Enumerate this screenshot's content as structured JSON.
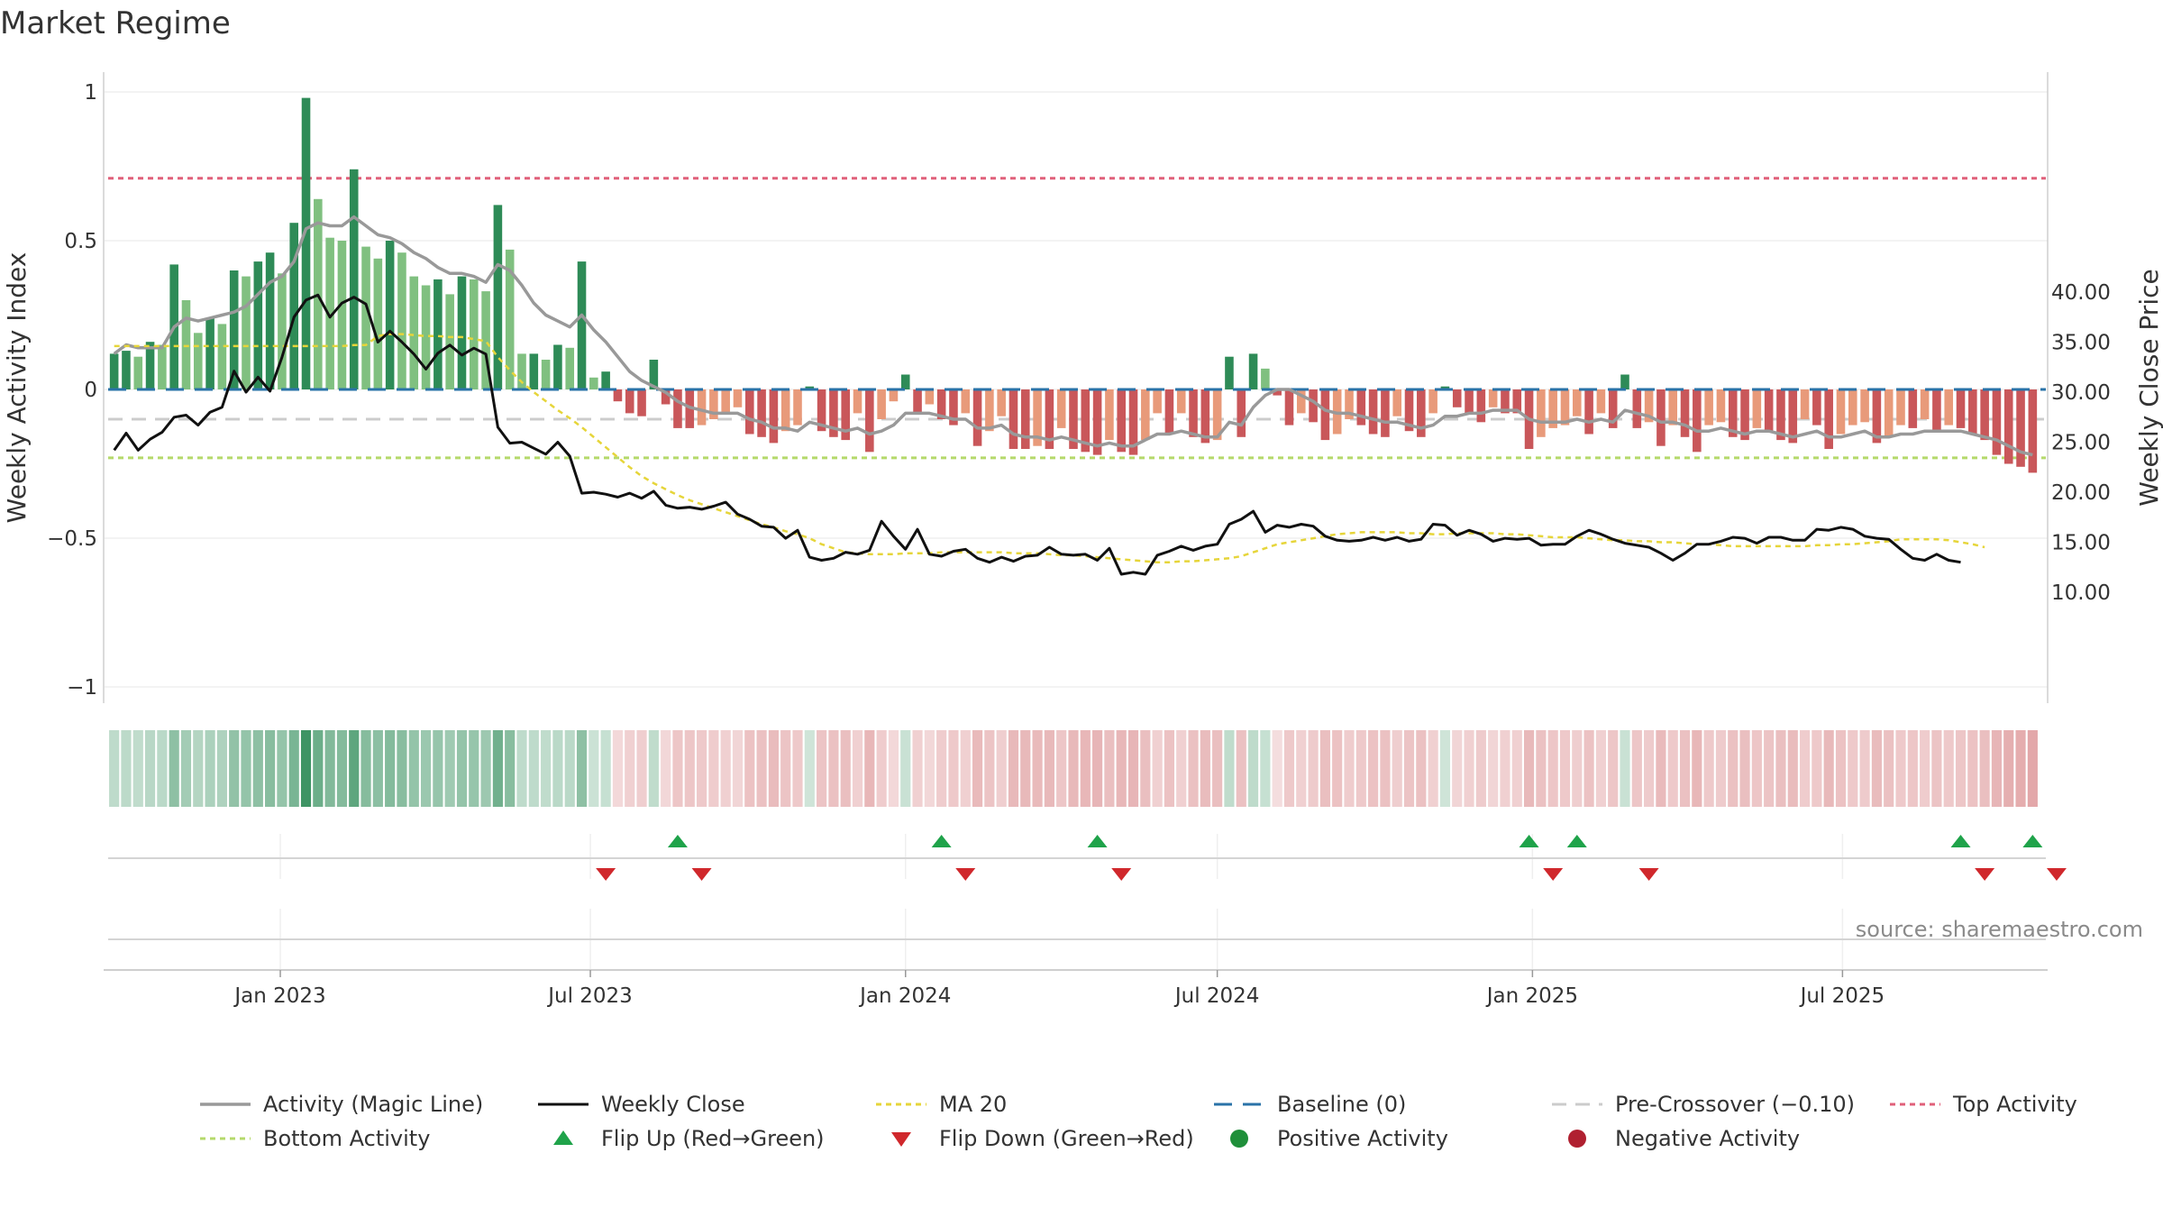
{
  "title": "Market Regime",
  "source": "source: sharemaestro.com",
  "colors": {
    "magic": "#999999",
    "close": "#111111",
    "ma": "#e6d53a",
    "baseline": "#2a73a8",
    "pre": "#cccccc",
    "top": "#e0607a",
    "bottom": "#b5d96b",
    "green_dark": "#2e8b57",
    "green_light": "#80c080",
    "red_dark": "#c9575a",
    "red_light": "#e89a7a",
    "flip_up": "#1fa34a",
    "flip_down": "#d0282c",
    "positive": "#1f8f3a",
    "negative": "#b02030"
  },
  "chart_data": {
    "type": "bar",
    "xlabel": "",
    "ylabel": "Weekly Activity Index",
    "y2label": "Weekly Close Price",
    "ylim": [
      -1.05,
      1.05
    ],
    "y2lim": [
      9.0,
      41.0
    ],
    "yticks": [
      "1",
      "0.5",
      "0",
      "−0.5",
      "−1"
    ],
    "y2ticks": [
      "40.00",
      "35.00",
      "30.00",
      "25.00",
      "20.00",
      "15.00",
      "10.00"
    ],
    "xticks": [
      "Jan 2023",
      "Jul 2023",
      "Jan 2024",
      "Jul 2024",
      "Jan 2025",
      "Jul 2025"
    ],
    "grid": true,
    "legend_position": "bottom",
    "reference_lines": {
      "top_activity": 0.71,
      "bottom_activity": -0.23,
      "baseline": 0,
      "pre_crossover": -0.1
    },
    "start_week": "2022-09-26",
    "activity": [
      0.12,
      0.13,
      0.11,
      0.16,
      0.15,
      0.42,
      0.3,
      0.19,
      0.24,
      0.22,
      0.4,
      0.38,
      0.43,
      0.46,
      0.39,
      0.56,
      0.98,
      0.64,
      0.51,
      0.5,
      0.74,
      0.48,
      0.44,
      0.5,
      0.46,
      0.38,
      0.35,
      0.37,
      0.32,
      0.38,
      0.37,
      0.33,
      0.62,
      0.47,
      0.12,
      0.12,
      0.1,
      0.15,
      0.14,
      0.43,
      0.04,
      0.06,
      -0.04,
      -0.08,
      -0.09,
      0.1,
      -0.05,
      -0.13,
      -0.13,
      -0.12,
      -0.1,
      -0.08,
      -0.06,
      -0.15,
      -0.16,
      -0.18,
      -0.14,
      -0.12,
      0.01,
      -0.14,
      -0.16,
      -0.17,
      -0.08,
      -0.21,
      -0.1,
      -0.04,
      0.05,
      -0.08,
      -0.05,
      -0.1,
      -0.12,
      -0.08,
      -0.19,
      -0.14,
      -0.09,
      -0.2,
      -0.2,
      -0.19,
      -0.2,
      -0.13,
      -0.2,
      -0.21,
      -0.22,
      -0.17,
      -0.21,
      -0.22,
      -0.17,
      -0.08,
      -0.15,
      -0.08,
      -0.16,
      -0.18,
      -0.17,
      0.11,
      -0.16,
      0.12,
      0.07,
      -0.02,
      -0.12,
      -0.08,
      -0.11,
      -0.17,
      -0.15,
      -0.1,
      -0.12,
      -0.15,
      -0.16,
      -0.09,
      -0.14,
      -0.16,
      -0.08,
      0.01,
      -0.06,
      -0.08,
      -0.11,
      -0.06,
      -0.08,
      -0.08,
      -0.2,
      -0.16,
      -0.13,
      -0.12,
      -0.09,
      -0.15,
      -0.08,
      -0.13,
      0.05,
      -0.13,
      -0.11,
      -0.19,
      -0.12,
      -0.16,
      -0.21,
      -0.12,
      -0.11,
      -0.16,
      -0.17,
      -0.13,
      -0.14,
      -0.17,
      -0.18,
      -0.1,
      -0.12,
      -0.2,
      -0.15,
      -0.12,
      -0.11,
      -0.18,
      -0.16,
      -0.12,
      -0.13,
      -0.1,
      -0.14,
      -0.12,
      -0.13,
      -0.15,
      -0.17,
      -0.22,
      -0.25,
      -0.26,
      -0.28
    ],
    "magic": [
      0.12,
      0.15,
      0.14,
      0.14,
      0.14,
      0.21,
      0.24,
      0.23,
      0.24,
      0.25,
      0.26,
      0.28,
      0.32,
      0.36,
      0.38,
      0.43,
      0.54,
      0.56,
      0.55,
      0.55,
      0.58,
      0.55,
      0.52,
      0.51,
      0.49,
      0.46,
      0.44,
      0.41,
      0.39,
      0.39,
      0.38,
      0.36,
      0.42,
      0.4,
      0.35,
      0.29,
      0.25,
      0.23,
      0.21,
      0.25,
      0.2,
      0.16,
      0.11,
      0.06,
      0.03,
      0.01,
      -0.01,
      -0.04,
      -0.06,
      -0.07,
      -0.08,
      -0.08,
      -0.08,
      -0.1,
      -0.11,
      -0.13,
      -0.13,
      -0.14,
      -0.11,
      -0.12,
      -0.13,
      -0.14,
      -0.13,
      -0.15,
      -0.14,
      -0.12,
      -0.08,
      -0.08,
      -0.08,
      -0.09,
      -0.1,
      -0.1,
      -0.13,
      -0.13,
      -0.12,
      -0.15,
      -0.16,
      -0.16,
      -0.17,
      -0.16,
      -0.17,
      -0.18,
      -0.19,
      -0.18,
      -0.19,
      -0.19,
      -0.17,
      -0.15,
      -0.15,
      -0.14,
      -0.15,
      -0.16,
      -0.16,
      -0.11,
      -0.12,
      -0.06,
      -0.02,
      0,
      0,
      -0.02,
      -0.04,
      -0.07,
      -0.08,
      -0.08,
      -0.09,
      -0.1,
      -0.11,
      -0.11,
      -0.12,
      -0.13,
      -0.12,
      -0.09,
      -0.09,
      -0.08,
      -0.08,
      -0.07,
      -0.07,
      -0.07,
      -0.1,
      -0.11,
      -0.11,
      -0.11,
      -0.1,
      -0.11,
      -0.1,
      -0.11,
      -0.07,
      -0.08,
      -0.09,
      -0.11,
      -0.11,
      -0.12,
      -0.14,
      -0.14,
      -0.13,
      -0.14,
      -0.15,
      -0.14,
      -0.14,
      -0.15,
      -0.16,
      -0.15,
      -0.14,
      -0.16,
      -0.16,
      -0.15,
      -0.14,
      -0.16,
      -0.16,
      -0.15,
      -0.15,
      -0.14,
      -0.14,
      -0.14,
      -0.14,
      -0.15,
      -0.16,
      -0.17,
      -0.19,
      -0.21,
      -0.22
    ],
    "close": [
      24.2,
      25.9,
      24.2,
      25.3,
      26.0,
      27.5,
      27.7,
      26.7,
      28.0,
      28.5,
      32.1,
      30.0,
      31.5,
      30.1,
      33.5,
      37.5,
      39.2,
      39.7,
      37.5,
      38.9,
      39.5,
      38.8,
      35.0,
      36.1,
      35.0,
      33.8,
      32.3,
      33.9,
      34.7,
      33.7,
      34.4,
      33.8,
      26.5,
      24.9,
      25.0,
      24.4,
      23.8,
      25.0,
      23.6,
      19.9,
      20.0,
      19.8,
      19.5,
      19.9,
      19.4,
      20.1,
      18.7,
      18.4,
      18.5,
      18.3,
      18.6,
      19.0,
      17.8,
      17.3,
      16.6,
      16.5,
      15.4,
      16.2,
      13.5,
      13.2,
      13.4,
      14.0,
      13.8,
      14.2,
      17.1,
      15.6,
      14.3,
      16.3,
      13.8,
      13.6,
      14.1,
      14.3,
      13.4,
      13.0,
      13.5,
      13.1,
      13.6,
      13.7,
      14.5,
      13.8,
      13.7,
      13.8,
      13.2,
      14.4,
      11.8,
      12.0,
      11.8,
      13.7,
      14.1,
      14.6,
      14.2,
      14.6,
      14.8,
      16.8,
      17.3,
      18.1,
      16.0,
      16.7,
      16.5,
      16.8,
      16.6,
      15.6,
      15.2,
      15.1,
      15.2,
      15.5,
      15.2,
      15.5,
      15.1,
      15.3,
      16.8,
      16.7,
      15.7,
      16.2,
      15.8,
      15.1,
      15.4,
      15.3,
      15.4,
      14.7,
      14.8,
      14.8,
      15.6,
      16.2,
      15.8,
      15.3,
      14.9,
      14.7,
      14.5,
      13.9,
      13.2,
      13.9,
      14.8,
      14.8,
      15.1,
      15.5,
      15.4,
      14.9,
      15.5,
      15.5,
      15.2,
      15.2,
      16.3,
      16.2,
      16.5,
      16.3,
      15.6,
      15.4,
      15.3,
      14.3,
      13.4,
      13.2,
      13.8,
      13.2,
      13.0
    ],
    "ma20": [
      34.6,
      34.6,
      34.6,
      34.6,
      34.6,
      34.6,
      34.6,
      34.6,
      34.6,
      34.6,
      34.6,
      34.6,
      34.6,
      34.6,
      34.6,
      34.6,
      34.6,
      34.6,
      34.6,
      34.6,
      34.7,
      34.7,
      35.6,
      35.8,
      35.8,
      35.7,
      35.6,
      35.6,
      35.5,
      35.5,
      35.3,
      35.1,
      33.5,
      32.2,
      31.0,
      30.0,
      29.1,
      28.2,
      27.4,
      26.5,
      25.5,
      24.5,
      23.5,
      22.5,
      21.6,
      20.9,
      20.3,
      19.7,
      19.2,
      18.8,
      18.4,
      18.0,
      17.6,
      17.2,
      16.8,
      16.5,
      16.1,
      15.8,
      15.4,
      14.8,
      14.4,
      14.0,
      13.9,
      13.8,
      13.8,
      13.8,
      13.9,
      13.9,
      13.9,
      14.0,
      14.0,
      14.0,
      14.0,
      14.0,
      14.0,
      13.9,
      13.9,
      13.9,
      13.8,
      13.7,
      13.7,
      13.6,
      13.5,
      13.4,
      13.3,
      13.2,
      13.1,
      13.0,
      13.0,
      13.1,
      13.1,
      13.2,
      13.3,
      13.4,
      13.6,
      14.0,
      14.4,
      14.8,
      15.0,
      15.2,
      15.4,
      15.6,
      15.8,
      15.9,
      16.0,
      16.0,
      16.0,
      16.0,
      15.9,
      15.9,
      15.8,
      15.8,
      15.9,
      15.9,
      15.9,
      15.9,
      15.8,
      15.8,
      15.7,
      15.6,
      15.5,
      15.5,
      15.5,
      15.4,
      15.3,
      15.2,
      15.2,
      15.1,
      15.1,
      15.0,
      15.0,
      14.9,
      14.8,
      14.8,
      14.7,
      14.6,
      14.6,
      14.6,
      14.6,
      14.6,
      14.6,
      14.6,
      14.7,
      14.7,
      14.8,
      14.8,
      14.9,
      15.0,
      15.1,
      15.3,
      15.3,
      15.3,
      15.3,
      15.2,
      15.0,
      14.8,
      14.5
    ],
    "flip_up_weeks": [
      47,
      69,
      82,
      118,
      122,
      154,
      160,
      180
    ],
    "flip_down_weeks": [
      41,
      49,
      71,
      84,
      120,
      128,
      156,
      162,
      182
    ],
    "legend": [
      "Activity (Magic Line)",
      "Weekly Close",
      "MA 20",
      "Baseline (0)",
      "Pre-Crossover (−0.10)",
      "Top Activity",
      "Bottom Activity",
      "Flip Up (Red→Green)",
      "Flip Down (Green→Red)",
      "Positive Activity",
      "Negative Activity"
    ]
  }
}
